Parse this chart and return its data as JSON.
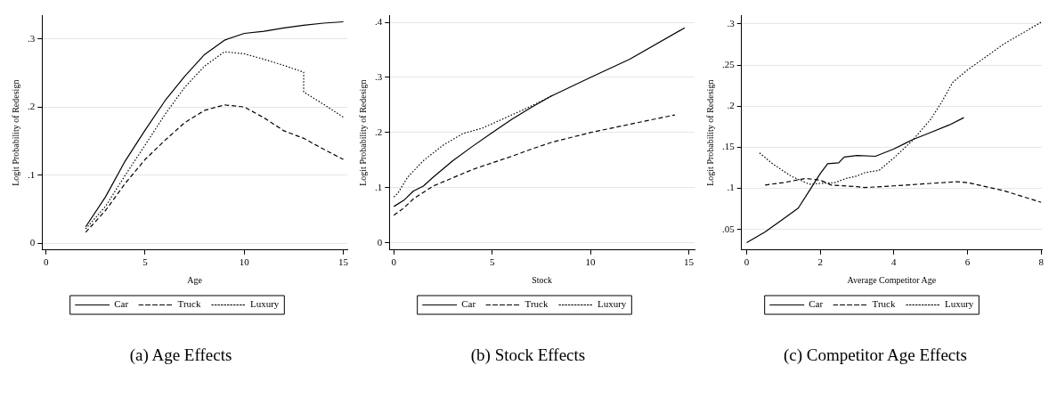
{
  "chart_data": [
    {
      "type": "line",
      "xlabel": "Age",
      "ylabel": "Logit Probability of Redesign",
      "xlim": [
        -0.2,
        15.2
      ],
      "ylim": [
        -0.01,
        0.334
      ],
      "xticks": [
        0,
        5,
        10,
        15
      ],
      "yticks": [
        {
          "value": 0,
          "label": "0"
        },
        {
          "value": 0.1,
          "label": ".1"
        },
        {
          "value": 0.2,
          "label": ".2"
        },
        {
          "value": 0.3,
          "label": ".3"
        }
      ],
      "grid": "y",
      "legend": "bottom",
      "annotations": [
        "(a) Age Effects"
      ],
      "series": [
        {
          "name": "Car",
          "color": "#000000",
          "line_style": "solid",
          "x": [
            2,
            3,
            4,
            5,
            6,
            7,
            8,
            9,
            10,
            11,
            12,
            13,
            14,
            15
          ],
          "values": [
            0.024,
            0.068,
            0.121,
            0.166,
            0.209,
            0.245,
            0.277,
            0.298,
            0.308,
            0.311,
            0.316,
            0.32,
            0.323,
            0.325
          ]
        },
        {
          "name": "Truck",
          "color": "#000000",
          "line_style": "dashed",
          "x": [
            2,
            3,
            4,
            5,
            6,
            7,
            8,
            9,
            10,
            11,
            12,
            13,
            14,
            15
          ],
          "values": [
            0.016,
            0.048,
            0.088,
            0.123,
            0.151,
            0.177,
            0.195,
            0.203,
            0.2,
            0.184,
            0.165,
            0.154,
            0.138,
            0.123
          ]
        },
        {
          "name": "Luxury",
          "color": "#000000",
          "line_style": "dotted",
          "x": [
            2,
            3,
            4,
            5,
            6,
            7,
            8,
            9,
            10,
            11,
            12,
            13,
            13,
            14,
            15
          ],
          "values": [
            0.021,
            0.054,
            0.1,
            0.144,
            0.189,
            0.229,
            0.26,
            0.281,
            0.278,
            0.27,
            0.261,
            0.251,
            0.222,
            0.204,
            0.185
          ]
        }
      ]
    },
    {
      "type": "line",
      "xlabel": "Stock",
      "ylabel": "Logit Probability of Redesign",
      "xlim": [
        -0.23,
        15.3
      ],
      "ylim": [
        -0.013,
        0.412
      ],
      "xticks": [
        0,
        5,
        10,
        15
      ],
      "yticks": [
        {
          "value": 0,
          "label": "0"
        },
        {
          "value": 0.1,
          "label": ".1"
        },
        {
          "value": 0.2,
          "label": ".2"
        },
        {
          "value": 0.3,
          "label": ".3"
        },
        {
          "value": 0.4,
          "label": ".4"
        }
      ],
      "grid": "y",
      "legend": "bottom",
      "annotations": [
        "(b) Stock Effects"
      ],
      "series": [
        {
          "name": "Car",
          "color": "#000000",
          "line_style": "solid",
          "x": [
            0,
            0.5,
            1,
            1.5,
            2,
            3,
            4,
            5,
            6,
            7,
            8,
            10,
            12,
            14.8
          ],
          "values": [
            0.066,
            0.077,
            0.094,
            0.103,
            0.119,
            0.149,
            0.175,
            0.2,
            0.224,
            0.246,
            0.266,
            0.3,
            0.333,
            0.39
          ]
        },
        {
          "name": "Truck",
          "color": "#000000",
          "line_style": "dashed",
          "x": [
            0,
            0.5,
            1,
            2,
            3,
            4,
            5,
            6,
            7,
            8,
            10,
            12,
            14.3
          ],
          "values": [
            0.05,
            0.063,
            0.08,
            0.103,
            0.118,
            0.133,
            0.145,
            0.157,
            0.17,
            0.182,
            0.2,
            0.215,
            0.232
          ]
        },
        {
          "name": "Luxury",
          "color": "#000000",
          "line_style": "dotted",
          "x": [
            0,
            0.2,
            0.7,
            1.5,
            2.5,
            3.5,
            4.5,
            5.5,
            6.5,
            7.5,
            8.1
          ],
          "values": [
            0.083,
            0.09,
            0.119,
            0.149,
            0.177,
            0.198,
            0.208,
            0.224,
            0.24,
            0.257,
            0.268
          ]
        }
      ]
    },
    {
      "type": "line",
      "xlabel": "Average Competitor Age",
      "ylabel": "Logit Probability of Redesign",
      "xlim": [
        -0.14,
        8.02
      ],
      "ylim": [
        0.025,
        0.31
      ],
      "xticks": [
        0,
        2,
        4,
        6,
        8
      ],
      "yticks": [
        {
          "value": 0.05,
          "label": ".05"
        },
        {
          "value": 0.1,
          "label": ".1"
        },
        {
          "value": 0.15,
          "label": ".15"
        },
        {
          "value": 0.2,
          "label": ".2"
        },
        {
          "value": 0.25,
          "label": ".25"
        },
        {
          "value": 0.3,
          "label": ".3"
        }
      ],
      "grid": "y",
      "legend": "bottom",
      "annotations": [
        "(c) Competitor Age Effects"
      ],
      "series": [
        {
          "name": "Car",
          "color": "#000000",
          "line_style": "solid",
          "x": [
            0,
            0.5,
            1,
            1.4,
            1.7,
            2,
            2.2,
            2.5,
            2.65,
            3,
            3.5,
            4,
            4.5,
            5,
            5.5,
            5.9
          ],
          "values": [
            0.034,
            0.047,
            0.063,
            0.076,
            0.097,
            0.118,
            0.13,
            0.131,
            0.138,
            0.14,
            0.139,
            0.148,
            0.159,
            0.168,
            0.177,
            0.186
          ]
        },
        {
          "name": "Truck",
          "color": "#000000",
          "line_style": "dashed",
          "x": [
            0.5,
            1,
            1.6,
            2,
            2.3,
            3,
            3.2,
            4,
            5,
            5.7,
            6,
            7,
            8
          ],
          "values": [
            0.104,
            0.107,
            0.112,
            0.11,
            0.104,
            0.102,
            0.101,
            0.103,
            0.106,
            0.108,
            0.107,
            0.097,
            0.083
          ]
        },
        {
          "name": "Luxury",
          "color": "#000000",
          "line_style": "dotted",
          "x": [
            0.35,
            0.7,
            1.2,
            1.7,
            2,
            2.4,
            2.7,
            3,
            3.2,
            3.6,
            4,
            4.5,
            5,
            5.3,
            5.6,
            6,
            7,
            8
          ],
          "values": [
            0.143,
            0.13,
            0.115,
            0.105,
            0.106,
            0.107,
            0.112,
            0.115,
            0.119,
            0.122,
            0.137,
            0.158,
            0.184,
            0.205,
            0.229,
            0.244,
            0.276,
            0.302
          ]
        }
      ]
    }
  ]
}
